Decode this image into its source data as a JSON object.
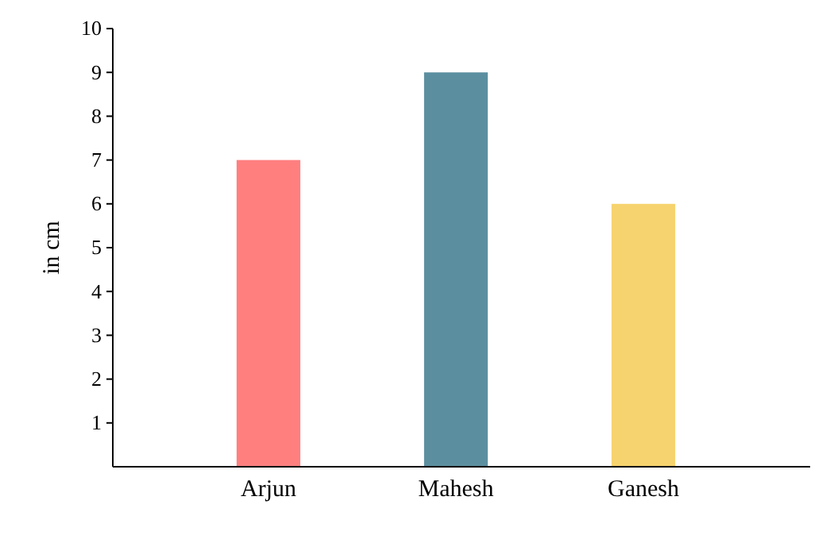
{
  "chart_data": {
    "type": "bar",
    "ylabel": "in cm",
    "categories": [
      "Arjun",
      "Mahesh",
      "Ganesh"
    ],
    "values": [
      7,
      9,
      6
    ],
    "colors": [
      "#ff7f7f",
      "#5b8fa0",
      "#f6d36e"
    ],
    "ylim": [
      0,
      10
    ],
    "yticks": [
      1,
      2,
      3,
      4,
      5,
      6,
      7,
      8,
      9,
      10
    ],
    "grid": false
  }
}
